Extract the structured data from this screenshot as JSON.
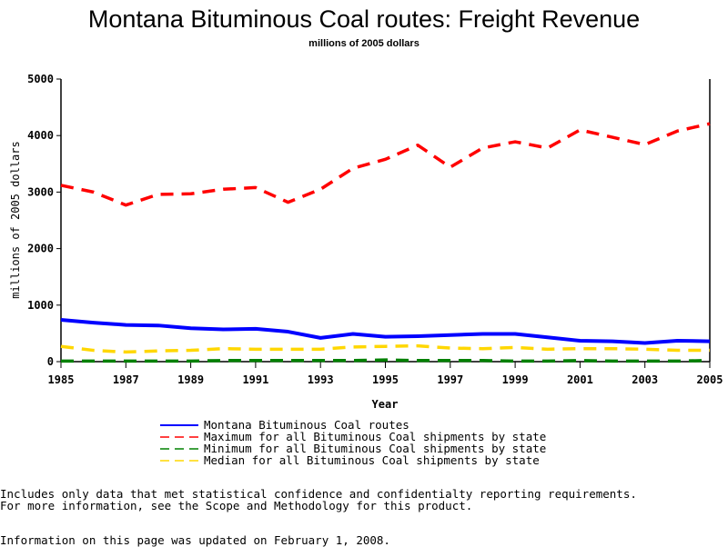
{
  "chart_data": {
    "type": "line",
    "title": "Montana Bituminous Coal routes: Freight Revenue",
    "subtitle": "millions of 2005 dollars",
    "xlabel": "Year",
    "ylabel": "millions of 2005 dollars",
    "xlim": [
      1985,
      2005
    ],
    "ylim": [
      0,
      5000
    ],
    "xticks": [
      "1985",
      "1987",
      "1989",
      "1991",
      "1993",
      "1995",
      "1997",
      "1999",
      "2001",
      "2003",
      "2005"
    ],
    "yticks": [
      "0",
      "1000",
      "2000",
      "3000",
      "4000",
      "5000"
    ],
    "x": [
      1985,
      1986,
      1987,
      1988,
      1989,
      1990,
      1991,
      1992,
      1993,
      1994,
      1995,
      1996,
      1997,
      1998,
      1999,
      2000,
      2001,
      2002,
      2003,
      2004,
      2005
    ],
    "series": [
      {
        "name": "Montana Bituminous Coal routes",
        "color": "#0000ff",
        "dash": "solid",
        "values": [
          740,
          690,
          650,
          640,
          590,
          570,
          580,
          530,
          420,
          490,
          440,
          450,
          470,
          490,
          490,
          430,
          370,
          360,
          330,
          370,
          360
        ]
      },
      {
        "name": "Maximum for all Bituminous Coal shipments by state",
        "color": "#ff0000",
        "dash": "dashed",
        "values": [
          3120,
          3000,
          2770,
          2960,
          2970,
          3050,
          3080,
          2820,
          3050,
          3420,
          3580,
          3830,
          3440,
          3780,
          3890,
          3780,
          4100,
          3970,
          3840,
          4080,
          4210
        ]
      },
      {
        "name": "Minimum for all Bituminous Coal shipments by state",
        "color": "#008000",
        "dash": "dashed",
        "values": [
          10,
          10,
          10,
          10,
          10,
          20,
          20,
          20,
          20,
          20,
          30,
          20,
          20,
          20,
          10,
          10,
          20,
          10,
          10,
          10,
          20
        ]
      },
      {
        "name": "Median for all Bituminous Coal shipments by state",
        "color": "#ffd700",
        "dash": "dashed",
        "values": [
          270,
          200,
          170,
          190,
          200,
          230,
          220,
          220,
          220,
          260,
          270,
          280,
          240,
          230,
          250,
          220,
          230,
          230,
          220,
          200,
          200
        ]
      }
    ],
    "legend_position": "bottom"
  },
  "footer": {
    "line1": "Includes only data that met statistical confidence and confidentialty reporting requirements.",
    "line2": "For more information, see the Scope and Methodology for this product.",
    "line3": "Information on this page was updated on February 1, 2008."
  }
}
